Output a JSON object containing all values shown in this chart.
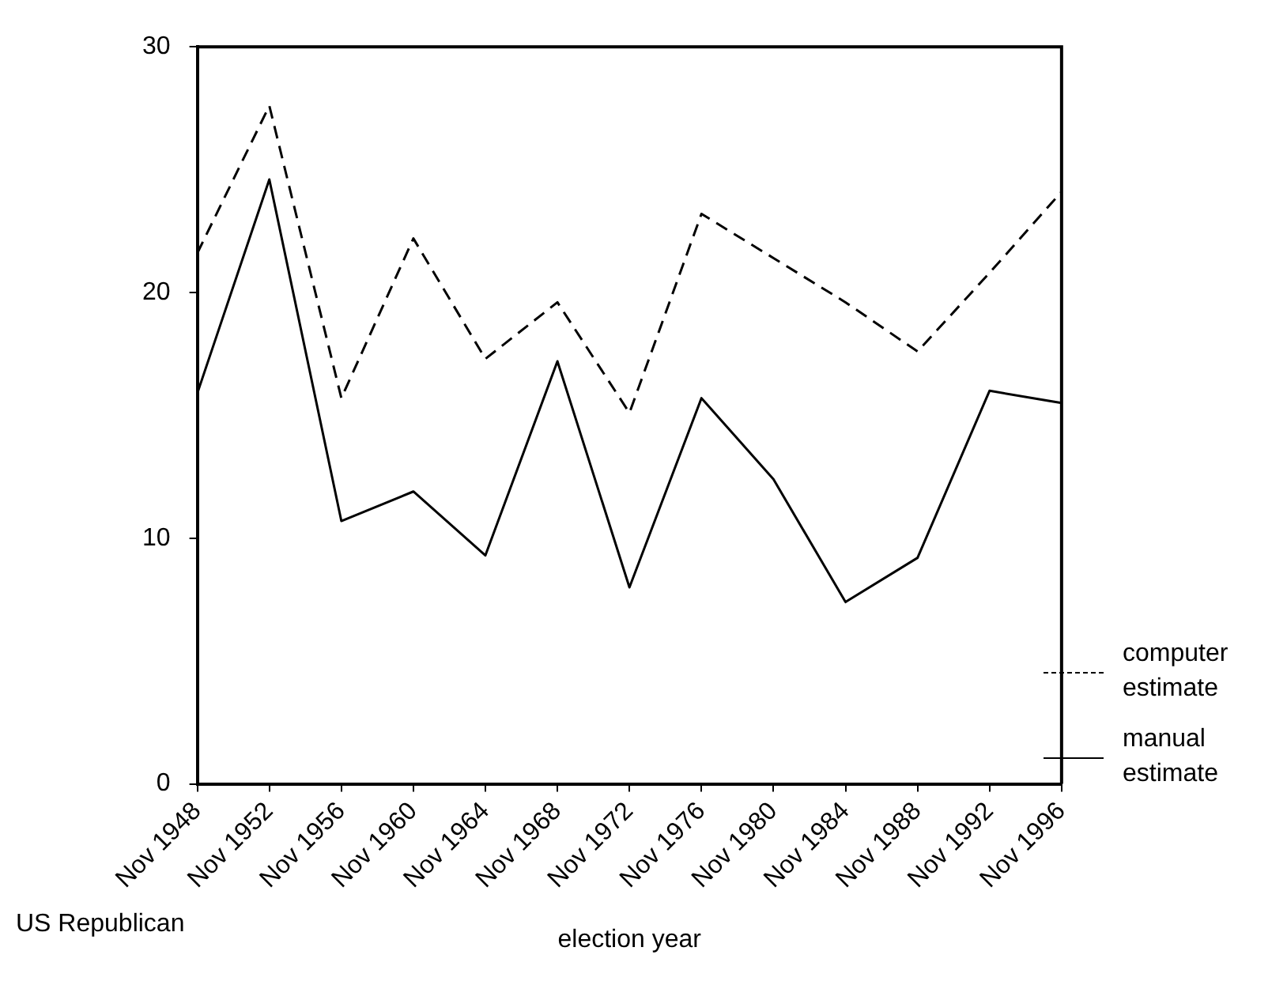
{
  "chart_data": {
    "type": "line",
    "xlabel": "election year",
    "annotations": [
      "US Republican"
    ],
    "categories": [
      "Nov 1948",
      "Nov 1952",
      "Nov 1956",
      "Nov 1960",
      "Nov 1964",
      "Nov 1968",
      "Nov 1972",
      "Nov 1976",
      "Nov 1980",
      "Nov 1984",
      "Nov 1988",
      "Nov 1992",
      "Nov 1996"
    ],
    "series": [
      {
        "name": "computer estimate",
        "color": "#000000",
        "line_style": "dashed",
        "values": [
          21.6,
          27.6,
          15.7,
          22.2,
          17.3,
          19.6,
          15.1,
          23.2,
          21.4,
          19.6,
          17.6,
          20.8,
          24.1
        ]
      },
      {
        "name": "manual estimate",
        "color": "#000000",
        "line_style": "solid",
        "values": [
          15.9,
          24.6,
          10.7,
          11.9,
          9.3,
          17.2,
          8.0,
          15.7,
          12.4,
          7.4,
          9.2,
          16.0,
          15.5
        ]
      }
    ],
    "ylim": [
      0,
      30
    ],
    "yticks": [
      0,
      10,
      20,
      30
    ],
    "grid": false,
    "legend": "right",
    "marker": "none"
  }
}
